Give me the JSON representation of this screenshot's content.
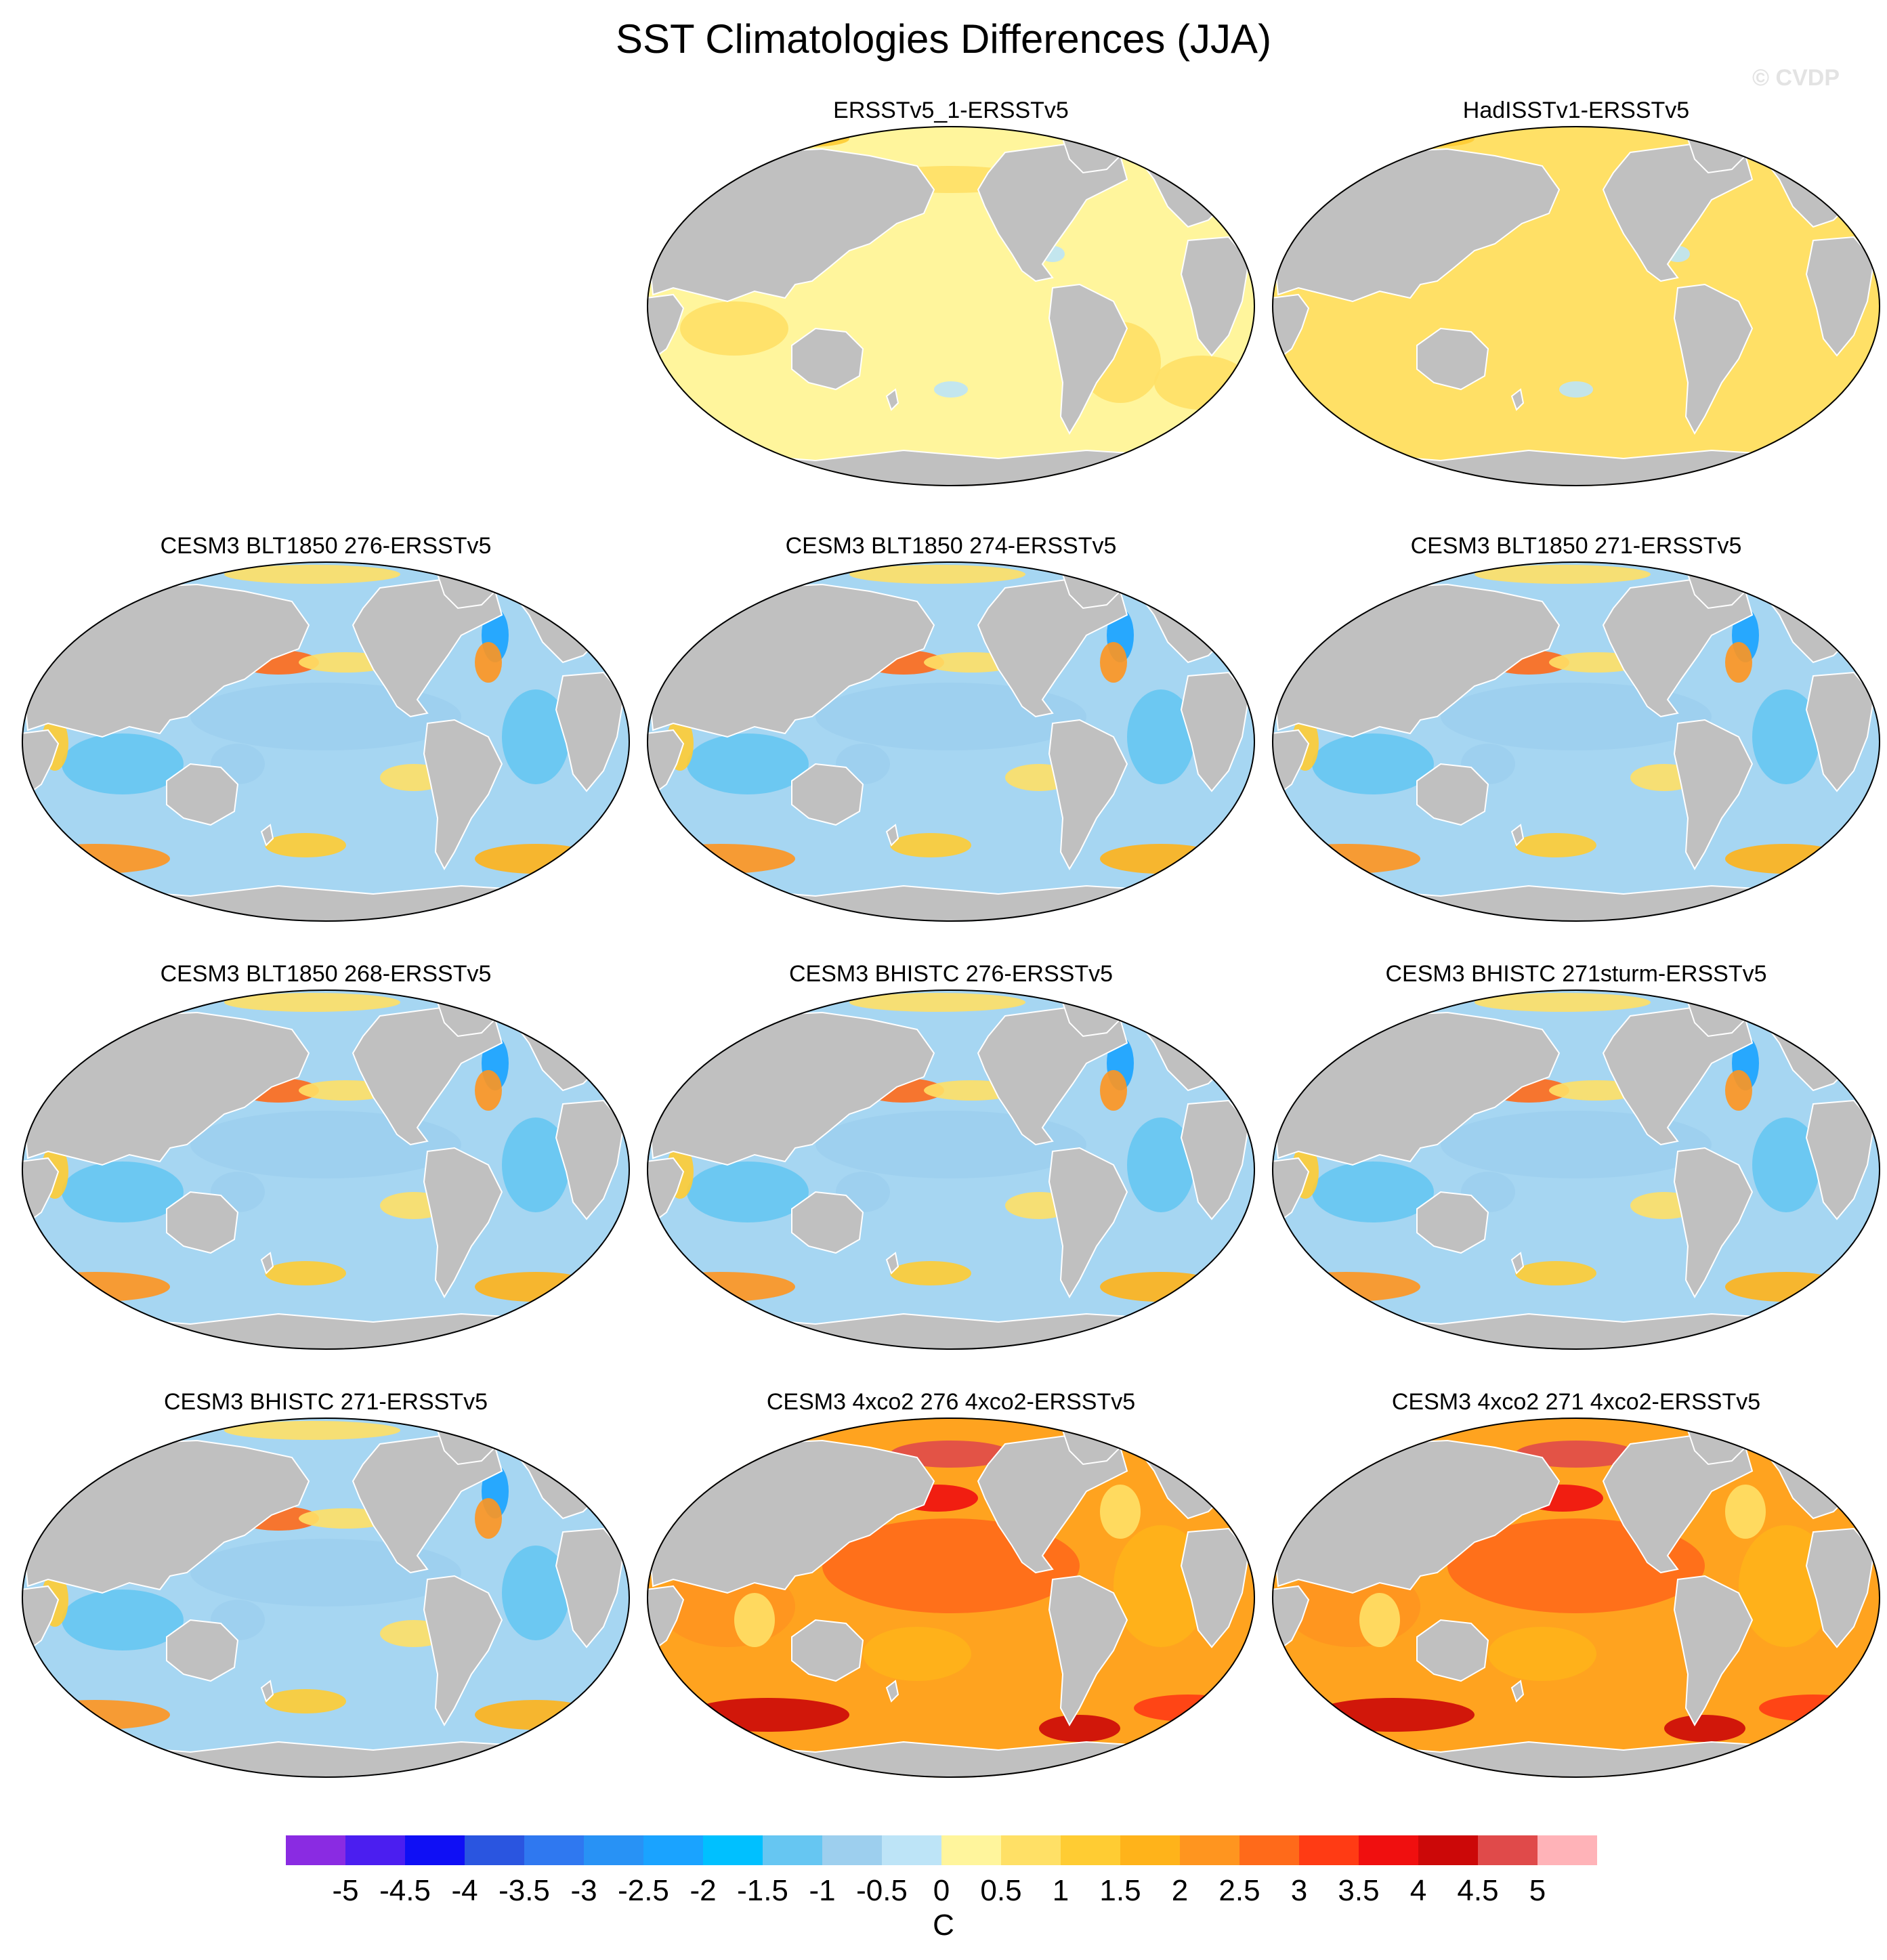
{
  "title": "SST Climatologies Differences (JJA)",
  "copyright": "© CVDP",
  "land_color": "#c0c0c0",
  "panels": [
    {
      "title": "ERSSTv5_1-ERSSTv5",
      "regime": "small_warm",
      "ocean_base": "#fff59c"
    },
    {
      "title": "HadISSTv1-ERSSTv5",
      "regime": "small_warm",
      "ocean_base": "#ffe066"
    },
    {
      "title": "CESM3 BLT1850 276-ERSSTv5",
      "regime": "cool_bias",
      "ocean_base": "#a6d6f2"
    },
    {
      "title": "CESM3 BLT1850 274-ERSSTv5",
      "regime": "cool_bias",
      "ocean_base": "#a6d6f2"
    },
    {
      "title": "CESM3 BLT1850 271-ERSSTv5",
      "regime": "cool_bias",
      "ocean_base": "#a6d6f2"
    },
    {
      "title": "CESM3 BLT1850 268-ERSSTv5",
      "regime": "cool_bias",
      "ocean_base": "#a6d6f2"
    },
    {
      "title": "CESM3 BHISTC 276-ERSSTv5",
      "regime": "cool_bias",
      "ocean_base": "#a6d6f2"
    },
    {
      "title": "CESM3 BHISTC 271sturm-ERSSTv5",
      "regime": "cool_bias",
      "ocean_base": "#a6d6f2"
    },
    {
      "title": "CESM3 BHISTC 271-ERSSTv5",
      "regime": "cool_bias",
      "ocean_base": "#a6d6f2"
    },
    {
      "title": "CESM3 4xco2 276 4xco2-ERSSTv5",
      "regime": "warm_bias",
      "ocean_base": "#ffa31f"
    },
    {
      "title": "CESM3 4xco2 271 4xco2-ERSSTv5",
      "regime": "warm_bias",
      "ocean_base": "#ffa31f"
    }
  ],
  "colorbar": {
    "unit": "C",
    "labels": [
      "-5",
      "-4.5",
      "-4",
      "-3.5",
      "-3",
      "-2.5",
      "-2",
      "-1.5",
      "-1",
      "-0.5",
      "0",
      "0.5",
      "1",
      "1.5",
      "2",
      "2.5",
      "3",
      "3.5",
      "4",
      "4.5",
      "5"
    ],
    "colors": [
      "#8a2be2",
      "#4b1ef0",
      "#0f0ff5",
      "#2a55e0",
      "#2f78f0",
      "#2892f5",
      "#1aa3ff",
      "#00c0ff",
      "#66c6f2",
      "#9dcfee",
      "#bde4f7",
      "#fff59c",
      "#ffe066",
      "#ffcc33",
      "#ffb31a",
      "#ff951f",
      "#ff6a1a",
      "#ff3b14",
      "#f00f0f",
      "#cc0808",
      "#e04a4a",
      "#ffb3b8"
    ]
  }
}
